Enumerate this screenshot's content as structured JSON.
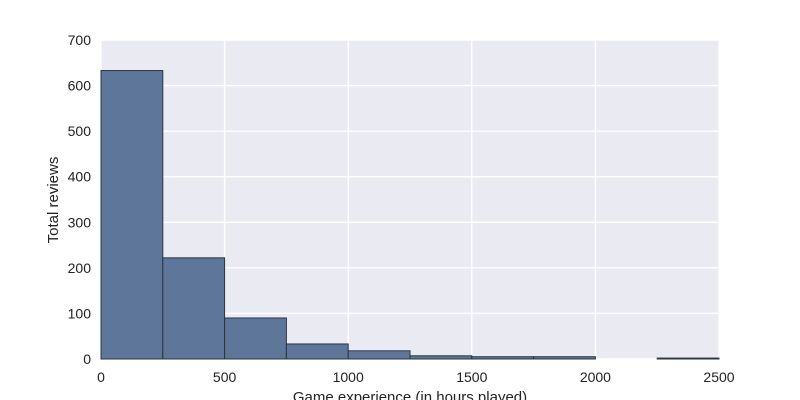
{
  "chart_data": {
    "type": "bar",
    "title": "",
    "xlabel": "Game experience (in hours played)",
    "ylabel": "Total reviews",
    "xlim": [
      0,
      2500
    ],
    "ylim": [
      0,
      700
    ],
    "xticks": [
      0,
      500,
      1000,
      1500,
      2000,
      2500
    ],
    "yticks": [
      0,
      100,
      200,
      300,
      400,
      500,
      600,
      700
    ],
    "grid": true,
    "bin_edges": [
      0,
      250,
      500,
      750,
      1000,
      1250,
      1500,
      1750,
      2000,
      2250,
      2500
    ],
    "values": [
      633,
      222,
      90,
      33,
      18,
      7,
      5,
      5,
      0,
      2
    ],
    "colors": {
      "bar": "#5f769b",
      "bar_edge": "#2b3540",
      "plot_bg": "#eaeaf2",
      "grid": "#ffffff"
    }
  }
}
